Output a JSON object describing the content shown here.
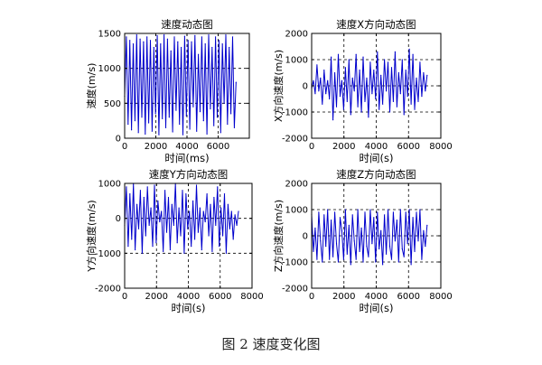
{
  "figure": {
    "caption": "图 2  速度变化图",
    "colors": {
      "series": "#0000cc",
      "axis": "#000000",
      "grid": "#000000"
    }
  },
  "chart_data": [
    {
      "type": "line",
      "title": "速度动态图",
      "xlabel": "时间(ms)",
      "ylabel": "速度(m/s)",
      "xlim": [
        0,
        8000
      ],
      "ylim": [
        0,
        1500
      ],
      "xticks": [
        0,
        2000,
        4000,
        6000
      ],
      "yticks": [
        0,
        500,
        1000,
        1500
      ],
      "grid": true,
      "series": [
        {
          "name": "速度",
          "x": [
            0,
            110,
            220,
            330,
            440,
            550,
            660,
            770,
            880,
            990,
            1100,
            1210,
            1320,
            1430,
            1540,
            1650,
            1760,
            1870,
            1980,
            2090,
            2200,
            2310,
            2420,
            2530,
            2640,
            2750,
            2860,
            2970,
            3080,
            3190,
            3300,
            3410,
            3520,
            3630,
            3740,
            3850,
            3960,
            4070,
            4180,
            4290,
            4400,
            4510,
            4620,
            4730,
            4840,
            4950,
            5060,
            5170,
            5280,
            5390,
            5500,
            5610,
            5720,
            5830,
            5940,
            6050,
            6160,
            6270,
            6380,
            6490,
            6600,
            6710,
            6820,
            6930,
            7040,
            7150
          ],
          "values": [
            600,
            1450,
            200,
            1400,
            120,
            1350,
            250,
            1480,
            80,
            1420,
            300,
            1380,
            60,
            1450,
            220,
            1400,
            100,
            1300,
            350,
            1470,
            50,
            1350,
            280,
            1480,
            150,
            1420,
            300,
            1250,
            90,
            1450,
            400,
            1380,
            200,
            1300,
            50,
            1460,
            320,
            1400,
            130,
            1380,
            450,
            1470,
            100,
            1200,
            380,
            1450,
            250,
            1350,
            60,
            1480,
            420,
            1300,
            180,
            1450,
            300,
            1400,
            80,
            1350,
            500,
            1480,
            200,
            1300,
            350,
            1450,
            150,
            800
          ]
        }
      ]
    },
    {
      "type": "line",
      "title": "速度X方向动态图",
      "xlabel": "时间(s)",
      "ylabel": "X方向速度(m/s)",
      "xlim": [
        0,
        8000
      ],
      "ylim": [
        -2000,
        2000
      ],
      "xticks": [
        0,
        2000,
        4000,
        6000,
        8000
      ],
      "yticks": [
        -2000,
        -1000,
        0,
        1000,
        2000
      ],
      "grid": true,
      "series": [
        {
          "name": "X方向速度",
          "x": [
            0,
            110,
            220,
            330,
            440,
            550,
            660,
            770,
            880,
            990,
            1100,
            1210,
            1320,
            1430,
            1540,
            1650,
            1760,
            1870,
            1980,
            2090,
            2200,
            2310,
            2420,
            2530,
            2640,
            2750,
            2860,
            2970,
            3080,
            3190,
            3300,
            3410,
            3520,
            3630,
            3740,
            3850,
            3960,
            4070,
            4180,
            4290,
            4400,
            4510,
            4620,
            4730,
            4840,
            4950,
            5060,
            5170,
            5280,
            5390,
            5500,
            5610,
            5720,
            5830,
            5940,
            6050,
            6160,
            6270,
            6380,
            6490,
            6600,
            6710,
            6820,
            6930,
            7040,
            7150
          ],
          "values": [
            -100,
            200,
            -300,
            800,
            -200,
            300,
            -700,
            600,
            -300,
            200,
            -500,
            1100,
            -1300,
            500,
            -800,
            1200,
            -400,
            200,
            -900,
            700,
            -600,
            1000,
            -1100,
            300,
            -200,
            1200,
            -800,
            600,
            -1000,
            1100,
            -600,
            300,
            -1200,
            900,
            -300,
            600,
            -500,
            1300,
            -900,
            400,
            -700,
            1000,
            -200,
            900,
            -1000,
            700,
            -600,
            1300,
            -800,
            500,
            -300,
            1000,
            -1100,
            600,
            -400,
            1400,
            -700,
            1200,
            -900,
            300,
            -600,
            900,
            -400,
            500,
            -200,
            400
          ]
        }
      ]
    },
    {
      "type": "line",
      "title": "速度Y方向动态图",
      "xlabel": "时间(s)",
      "ylabel": "Y方向速度(m/s)",
      "xlim": [
        0,
        8000
      ],
      "ylim": [
        -2000,
        1000
      ],
      "xticks": [
        0,
        2000,
        4000,
        6000,
        8000
      ],
      "yticks": [
        -2000,
        -1000,
        0,
        1000
      ],
      "grid": true,
      "series": [
        {
          "name": "Y方向速度",
          "x": [
            0,
            110,
            220,
            330,
            440,
            550,
            660,
            770,
            880,
            990,
            1100,
            1210,
            1320,
            1430,
            1540,
            1650,
            1760,
            1870,
            1980,
            2090,
            2200,
            2310,
            2420,
            2530,
            2640,
            2750,
            2860,
            2970,
            3080,
            3190,
            3300,
            3410,
            3520,
            3630,
            3740,
            3850,
            3960,
            4070,
            4180,
            4290,
            4400,
            4510,
            4620,
            4730,
            4840,
            4950,
            5060,
            5170,
            5280,
            5390,
            5500,
            5610,
            5720,
            5830,
            5940,
            6050,
            6160,
            6270,
            6380,
            6490,
            6600,
            6710,
            6820,
            6930,
            7040,
            7150
          ],
          "values": [
            -200,
            900,
            -800,
            700,
            -600,
            1000,
            -900,
            400,
            -300,
            800,
            -1000,
            600,
            -500,
            900,
            -200,
            300,
            -800,
            950,
            -700,
            500,
            -100,
            200,
            -950,
            800,
            -400,
            600,
            -900,
            400,
            -200,
            1000,
            -700,
            300,
            -500,
            800,
            -1000,
            700,
            -300,
            200,
            -800,
            500,
            -600,
            950,
            -400,
            300,
            -900,
            200,
            -100,
            700,
            -500,
            400,
            -950,
            600,
            -200,
            900,
            -800,
            300,
            -500,
            700,
            -1000,
            400,
            -300,
            200,
            -600,
            100,
            -200,
            200
          ]
        }
      ]
    },
    {
      "type": "line",
      "title": "速度Z方向动态图",
      "xlabel": "时间(s)",
      "ylabel": "Z方向速度(m/s)",
      "xlim": [
        0,
        8000
      ],
      "ylim": [
        -2000,
        2000
      ],
      "xticks": [
        0,
        2000,
        4000,
        6000,
        8000
      ],
      "yticks": [
        -2000,
        -1000,
        0,
        1000,
        2000
      ],
      "grid": true,
      "series": [
        {
          "name": "Z方向速度",
          "x": [
            0,
            110,
            220,
            330,
            440,
            550,
            660,
            770,
            880,
            990,
            1100,
            1210,
            1320,
            1430,
            1540,
            1650,
            1760,
            1870,
            1980,
            2090,
            2200,
            2310,
            2420,
            2530,
            2640,
            2750,
            2860,
            2970,
            3080,
            3190,
            3300,
            3410,
            3520,
            3630,
            3740,
            3850,
            3960,
            4070,
            4180,
            4290,
            4400,
            4510,
            4620,
            4730,
            4840,
            4950,
            5060,
            5170,
            5280,
            5390,
            5500,
            5610,
            5720,
            5830,
            5940,
            6050,
            6160,
            6270,
            6380,
            6490,
            6600,
            6710,
            6820,
            6930,
            7040,
            7150
          ],
          "values": [
            800,
            -600,
            300,
            -900,
            900,
            -200,
            -1000,
            800,
            -400,
            1000,
            -900,
            600,
            -800,
            900,
            -300,
            -1000,
            700,
            200,
            -900,
            1000,
            -700,
            400,
            -1100,
            800,
            -200,
            -900,
            1000,
            -600,
            300,
            -1000,
            900,
            -400,
            -800,
            1000,
            -300,
            700,
            -1000,
            900,
            -500,
            200,
            -1100,
            800,
            -700,
            1000,
            -400,
            -900,
            900,
            -200,
            600,
            -1000,
            1000,
            -500,
            -800,
            900,
            -300,
            1000,
            -1100,
            700,
            -600,
            900,
            -200,
            1000,
            -900,
            200,
            -400,
            400
          ]
        }
      ]
    }
  ]
}
